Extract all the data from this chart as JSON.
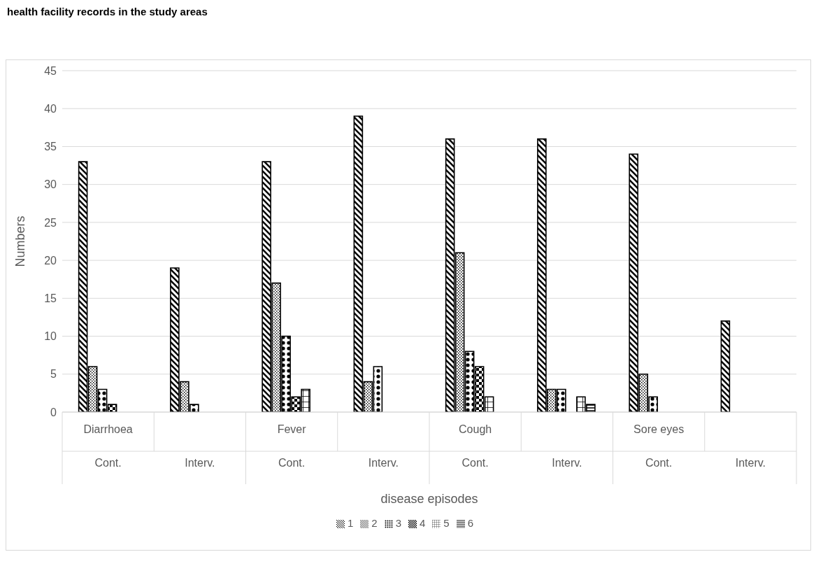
{
  "chart_data": {
    "type": "bar",
    "title": "health facility records in the study areas",
    "xlabel": "disease episodes",
    "ylabel": "Numbers",
    "categories": [
      "Cont.",
      "Interv.",
      "Cont.",
      "Interv.",
      "Cont.",
      "Interv.",
      "Cont.",
      "Interv."
    ],
    "annotations": [
      "Diarrhoea",
      "Fever",
      "Cough",
      "Sore eyes"
    ],
    "series": [
      {
        "name": "1",
        "color": "#000000",
        "values": [
          33,
          19,
          33,
          39,
          36,
          36,
          34,
          12
        ]
      },
      {
        "name": "2",
        "color": "#000000",
        "values": [
          6,
          4,
          17,
          4,
          21,
          3,
          5,
          null
        ]
      },
      {
        "name": "3",
        "color": "#000000",
        "values": [
          3,
          1,
          10,
          6,
          8,
          3,
          2,
          null
        ]
      },
      {
        "name": "4",
        "color": "#000000",
        "values": [
          1,
          null,
          2,
          null,
          6,
          null,
          null,
          null
        ]
      },
      {
        "name": "5",
        "color": "#000000",
        "values": [
          null,
          null,
          3,
          null,
          2,
          2,
          null,
          null
        ]
      },
      {
        "name": "6",
        "color": "#000000",
        "values": [
          null,
          null,
          null,
          null,
          null,
          1,
          null,
          null
        ]
      }
    ],
    "ylim": [
      0,
      45
    ],
    "yticks": [
      0,
      5,
      10,
      15,
      20,
      25,
      30,
      35,
      40,
      45
    ],
    "grid": "y",
    "legend": "bottom"
  }
}
